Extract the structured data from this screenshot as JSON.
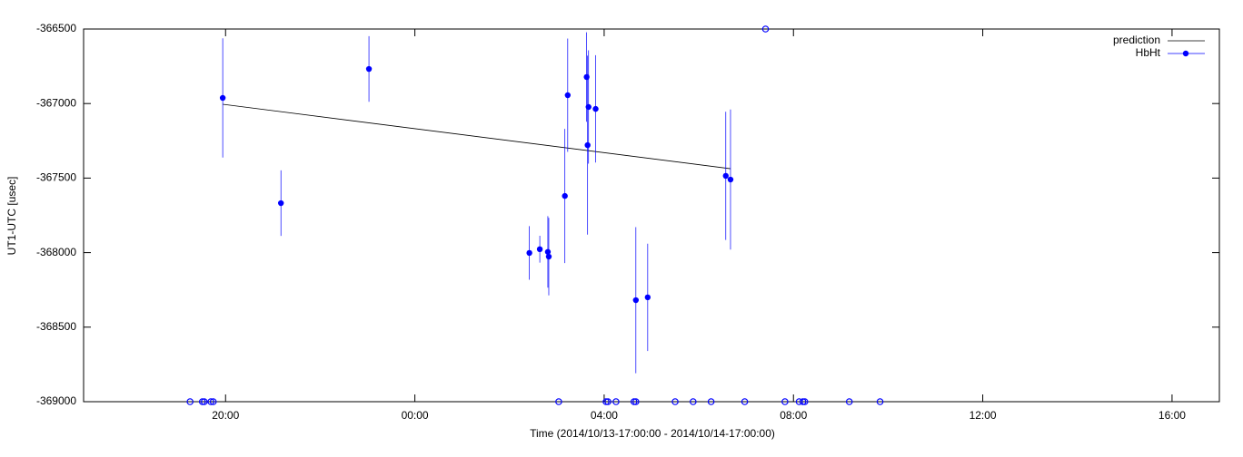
{
  "chart_data": {
    "type": "scatter",
    "x_label": "Time (2014/10/13-17:00:00 - 2014/10/14-17:00:00)",
    "y_label": "UT1-UTC [usec]",
    "xlim": [
      17,
      41
    ],
    "xticks": [
      {
        "value": 20,
        "label": "20:00"
      },
      {
        "value": 24,
        "label": "00:00"
      },
      {
        "value": 28,
        "label": "04:00"
      },
      {
        "value": 32,
        "label": "08:00"
      },
      {
        "value": 36,
        "label": "12:00"
      },
      {
        "value": 40,
        "label": "16:00"
      }
    ],
    "ylim": [
      -369000,
      -366500
    ],
    "yticks": [
      -369000,
      -368500,
      -368000,
      -367500,
      -367000,
      -366500
    ],
    "legend": "top-right",
    "series": [
      {
        "name": "prediction",
        "style": "line",
        "color": "#000000",
        "x": [
          19.94,
          30.67
        ],
        "values": [
          -367005,
          -367437
        ]
      },
      {
        "name": "HbHt",
        "style": "points-errors",
        "color": "#0000ff",
        "x": [
          19.94,
          21.17,
          23.03,
          26.42,
          26.64,
          26.81,
          26.83,
          27.17,
          27.23,
          27.63,
          27.65,
          27.67,
          27.82,
          28.67,
          28.92,
          30.57,
          30.67
        ],
        "values": [
          -366962,
          -367668,
          -366768,
          -368002,
          -367977,
          -367995,
          -368027,
          -367620,
          -366944,
          -366822,
          -367279,
          -367023,
          -367036,
          -368319,
          -368300,
          -367485,
          -367510
        ],
        "errors": [
          400,
          220,
          220,
          180,
          90,
          240,
          260,
          450,
          380,
          300,
          600,
          380,
          360,
          490,
          360,
          430,
          470
        ]
      },
      {
        "style": "open-points",
        "color": "#0000ff",
        "x": [
          19.25,
          19.51,
          19.55,
          19.69,
          19.74,
          27.04,
          28.04,
          28.08,
          28.25,
          28.63,
          28.67,
          29.5,
          29.88,
          30.26,
          30.97,
          31.82,
          32.12,
          32.2,
          32.24,
          33.18,
          33.83,
          31.41
        ],
        "values": [
          -369000,
          -369000,
          -369000,
          -369000,
          -369000,
          -369000,
          -369000,
          -369000,
          -369000,
          -369000,
          -369000,
          -369000,
          -369000,
          -369000,
          -369000,
          -369000,
          -369000,
          -369000,
          -369000,
          -369000,
          -369000,
          -366500
        ]
      }
    ]
  }
}
